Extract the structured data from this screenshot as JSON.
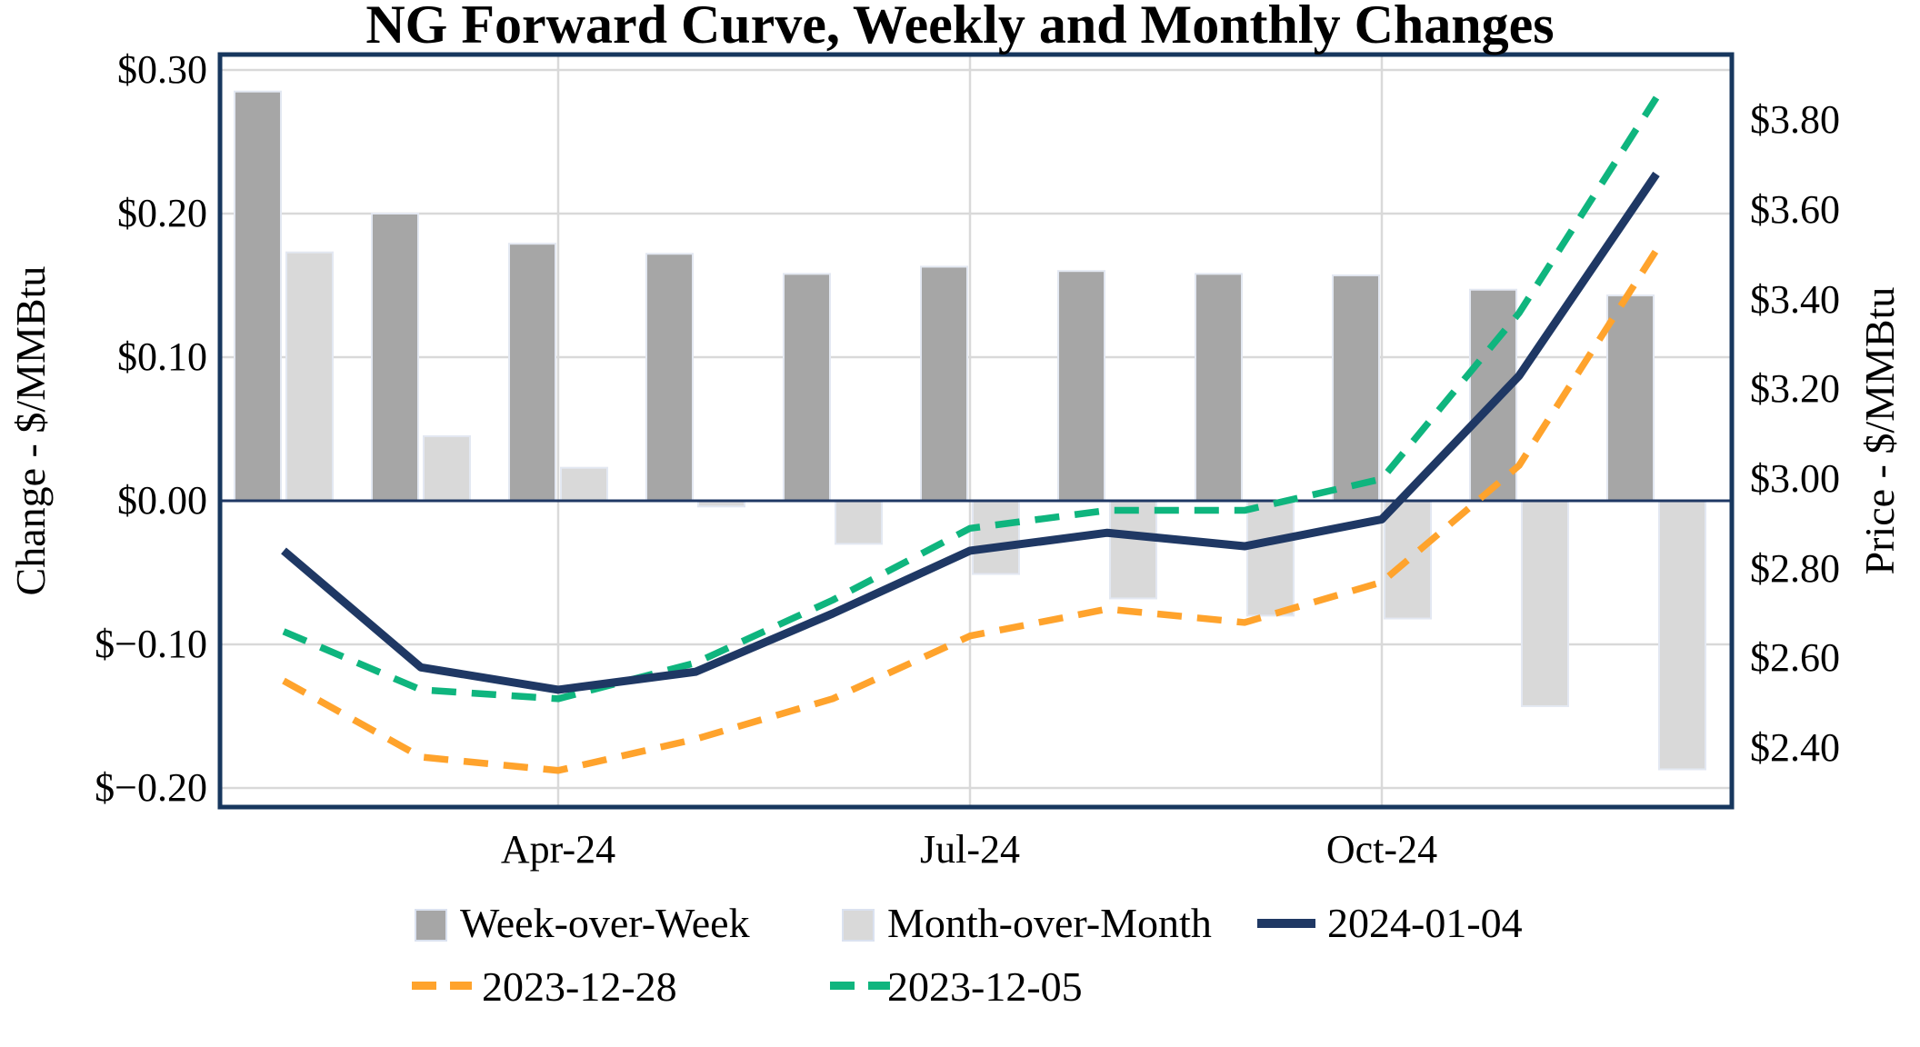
{
  "title": "NG Forward Curve, Weekly and Monthly Changes",
  "left_axis": {
    "title": "Change - $/MMBtu",
    "ticks": [
      {
        "label": "$0.30",
        "value": 0.3
      },
      {
        "label": "$0.20",
        "value": 0.2
      },
      {
        "label": "$0.10",
        "value": 0.1
      },
      {
        "label": "$0.00",
        "value": 0.0
      },
      {
        "label": "$−0.10",
        "value": -0.1
      },
      {
        "label": "$−0.20",
        "value": -0.2
      }
    ]
  },
  "right_axis": {
    "title": "Price - $/MMBtu",
    "ticks": [
      {
        "label": "$3.80",
        "value": 3.8
      },
      {
        "label": "$3.60",
        "value": 3.6
      },
      {
        "label": "$3.40",
        "value": 3.4
      },
      {
        "label": "$3.20",
        "value": 3.2
      },
      {
        "label": "$3.00",
        "value": 3.0
      },
      {
        "label": "$2.80",
        "value": 2.8
      },
      {
        "label": "$2.60",
        "value": 2.6
      },
      {
        "label": "$2.40",
        "value": 2.4
      }
    ]
  },
  "x_axis": {
    "ticks": [
      {
        "label": "Apr-24",
        "category_index": 2
      },
      {
        "label": "Jul-24",
        "category_index": 5
      },
      {
        "label": "Oct-24",
        "category_index": 8
      }
    ]
  },
  "colors": {
    "navy": "#1F3864",
    "orange": "#FFA32C",
    "green": "#0FB57E",
    "bar_dark": "#A6A6A6",
    "bar_light": "#D9D9D9",
    "gridline": "#D9D9D9",
    "border": "#17375E"
  },
  "legend": {
    "items": [
      {
        "label": "Week-over-Week",
        "swatch": "square",
        "color": "#A6A6A6"
      },
      {
        "label": "Month-over-Month",
        "swatch": "square",
        "color": "#D9D9D9"
      },
      {
        "label": "2024-01-04",
        "swatch": "solid-line",
        "color": "#1F3864"
      },
      {
        "label": "2023-12-28",
        "swatch": "dashed-line",
        "color": "#FFA32C"
      },
      {
        "label": "2023-12-05",
        "swatch": "dashed-line",
        "color": "#0FB57E"
      }
    ]
  },
  "chart_data": {
    "type": "bar",
    "subtype": "combo-bar-line-dual-axis",
    "title": "NG Forward Curve, Weekly and Monthly Changes",
    "categories": [
      "Feb-24",
      "Mar-24",
      "Apr-24",
      "May-24",
      "Jun-24",
      "Jul-24",
      "Aug-24",
      "Sep-24",
      "Oct-24",
      "Nov-24",
      "Dec-24"
    ],
    "xlabel": "",
    "ylabel_left": "Change - $/MMBtu",
    "ylabel_right": "Price - $/MMBtu",
    "ylim_left": [
      -0.213,
      0.311
    ],
    "ylim_right": [
      2.27,
      3.95
    ],
    "grid": true,
    "legend_position": "bottom",
    "series": [
      {
        "name": "Week-over-Week",
        "type": "bar",
        "axis": "left",
        "color": "#A6A6A6",
        "values": [
          0.285,
          0.2,
          0.179,
          0.172,
          0.158,
          0.163,
          0.16,
          0.158,
          0.157,
          0.147,
          0.143
        ]
      },
      {
        "name": "Month-over-Month",
        "type": "bar",
        "axis": "left",
        "color": "#D9D9D9",
        "values": [
          0.173,
          0.045,
          0.023,
          -0.004,
          -0.03,
          -0.051,
          -0.068,
          -0.08,
          -0.082,
          -0.143,
          -0.187
        ]
      },
      {
        "name": "2024-01-04",
        "type": "line",
        "style": "solid",
        "axis": "right",
        "color": "#1F3864",
        "values": [
          2.84,
          2.58,
          2.53,
          2.57,
          2.7,
          2.84,
          2.88,
          2.85,
          2.91,
          3.23,
          3.68
        ]
      },
      {
        "name": "2023-12-28",
        "type": "line",
        "style": "dashed",
        "axis": "right",
        "color": "#FFA32C",
        "values": [
          2.55,
          2.38,
          2.35,
          2.42,
          2.51,
          2.65,
          2.71,
          2.68,
          2.77,
          3.03,
          3.51
        ]
      },
      {
        "name": "2023-12-05",
        "type": "line",
        "style": "dashed",
        "axis": "right",
        "color": "#0FB57E",
        "values": [
          2.66,
          2.53,
          2.51,
          2.59,
          2.73,
          2.89,
          2.93,
          2.93,
          3.0,
          3.37,
          3.85
        ]
      }
    ]
  }
}
